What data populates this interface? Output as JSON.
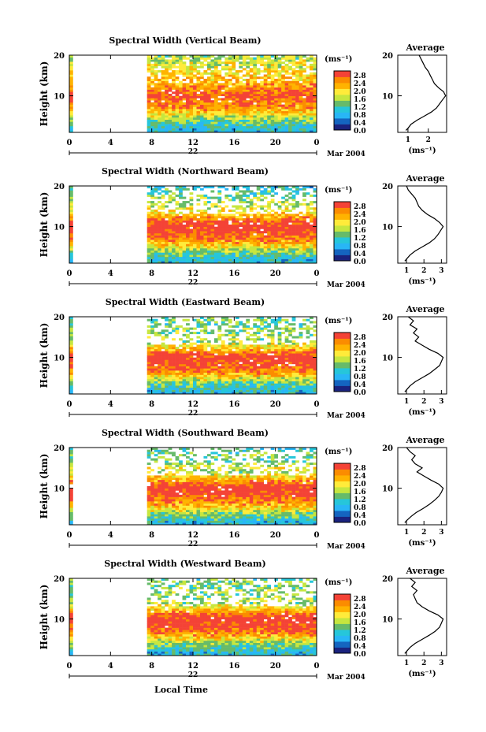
{
  "chart_data": [
    {
      "type": "heatmap",
      "title": "Spectral Width (Vertical Beam)",
      "ylabel": "Height (km)",
      "yticks": [
        "20",
        "10"
      ],
      "xticks": [
        "0",
        "4",
        "8",
        "12",
        "16",
        "20",
        "0"
      ],
      "date_day": "22",
      "date_month": "Mar 2004",
      "xlim": [
        0,
        24
      ],
      "ylim": [
        1,
        20
      ],
      "data_start_hour": 7.5,
      "colorbar": {
        "unit": "(ms⁻¹)",
        "ticks": [
          "2.8",
          "2.4",
          "2.0",
          "1.6",
          "1.2",
          "0.8",
          "0.4",
          "0.0"
        ],
        "range": [
          0,
          3
        ]
      },
      "avg_title": "Average",
      "avg_xticks": [
        "1",
        "2"
      ],
      "avg_xlabel": "(ms⁻¹)",
      "avg_xlim": [
        0.5,
        2.9
      ],
      "average_profile": {
        "height_km": [
          1.5,
          2,
          3,
          4,
          5,
          6,
          7,
          8,
          9,
          10,
          11,
          12,
          13,
          14,
          15,
          16,
          17,
          18,
          19,
          20
        ],
        "width": [
          0.9,
          1.0,
          1.15,
          1.45,
          1.8,
          2.15,
          2.4,
          2.55,
          2.7,
          2.85,
          2.75,
          2.5,
          2.3,
          2.2,
          2.1,
          2.0,
          1.85,
          1.75,
          1.65,
          1.55
        ]
      }
    },
    {
      "type": "heatmap",
      "title": "Spectral Width (Northward Beam)",
      "ylabel": "Height (km)",
      "yticks": [
        "20",
        "10"
      ],
      "xticks": [
        "0",
        "4",
        "8",
        "12",
        "16",
        "20",
        "0"
      ],
      "date_day": "22",
      "date_month": "Mar 2004",
      "xlim": [
        0,
        24
      ],
      "ylim": [
        1,
        20
      ],
      "data_start_hour": 7.5,
      "colorbar": {
        "unit": "(ms⁻¹)",
        "ticks": [
          "2.8",
          "2.4",
          "2.0",
          "1.6",
          "1.2",
          "0.8",
          "0.4",
          "0.0"
        ],
        "range": [
          0,
          3
        ]
      },
      "avg_title": "Average",
      "avg_xticks": [
        "1",
        "2",
        "3"
      ],
      "avg_xlabel": "(ms⁻¹)",
      "avg_xlim": [
        0.5,
        3.3
      ],
      "average_profile": {
        "height_km": [
          1.5,
          2,
          3,
          4,
          5,
          6,
          7,
          8,
          9,
          10,
          11,
          12,
          13,
          14,
          15,
          16,
          17,
          18,
          19,
          20
        ],
        "width": [
          0.9,
          1.0,
          1.2,
          1.5,
          1.9,
          2.3,
          2.6,
          2.8,
          2.95,
          3.1,
          2.9,
          2.6,
          2.2,
          1.9,
          1.7,
          1.6,
          1.5,
          1.3,
          1.1,
          1.0
        ]
      }
    },
    {
      "type": "heatmap",
      "title": "Spectral Width (Eastward Beam)",
      "ylabel": "Height (km)",
      "yticks": [
        "20",
        "10"
      ],
      "xticks": [
        "0",
        "4",
        "8",
        "12",
        "16",
        "20",
        "0"
      ],
      "date_day": "22",
      "date_month": "Mar 2004",
      "xlim": [
        0,
        24
      ],
      "ylim": [
        1,
        20
      ],
      "data_start_hour": 7.5,
      "colorbar": {
        "unit": "(ms⁻¹)",
        "ticks": [
          "2.8",
          "2.4",
          "2.0",
          "1.6",
          "1.2",
          "0.8",
          "0.4",
          "0.0"
        ],
        "range": [
          0,
          3
        ]
      },
      "avg_title": "Average",
      "avg_xticks": [
        "1",
        "2",
        "3"
      ],
      "avg_xlabel": "(ms⁻¹)",
      "avg_xlim": [
        0.5,
        3.3
      ],
      "average_profile": {
        "height_km": [
          1.5,
          2,
          3,
          4,
          5,
          6,
          7,
          8,
          9,
          10,
          11,
          12,
          13,
          14,
          15,
          16,
          17,
          18,
          19,
          20
        ],
        "width": [
          0.9,
          1.0,
          1.2,
          1.5,
          1.9,
          2.3,
          2.6,
          2.9,
          3.0,
          3.1,
          2.8,
          2.3,
          1.9,
          1.5,
          1.7,
          1.4,
          1.6,
          1.2,
          1.4,
          1.1
        ]
      }
    },
    {
      "type": "heatmap",
      "title": "Spectral Width (Southward Beam)",
      "ylabel": "Height (km)",
      "yticks": [
        "20",
        "10"
      ],
      "xticks": [
        "0",
        "4",
        "8",
        "12",
        "16",
        "20",
        "0"
      ],
      "date_day": "22",
      "date_month": "Mar 2004",
      "xlim": [
        0,
        24
      ],
      "ylim": [
        1,
        20
      ],
      "data_start_hour": 7.5,
      "colorbar": {
        "unit": "(ms⁻¹)",
        "ticks": [
          "2.8",
          "2.4",
          "2.0",
          "1.6",
          "1.2",
          "0.8",
          "0.4",
          "0.0"
        ],
        "range": [
          0,
          3
        ]
      },
      "avg_title": "Average",
      "avg_xticks": [
        "1",
        "2",
        "3"
      ],
      "avg_xlabel": "(ms⁻¹)",
      "avg_xlim": [
        0.5,
        3.3
      ],
      "average_profile": {
        "height_km": [
          1.5,
          2,
          3,
          4,
          5,
          6,
          7,
          8,
          9,
          10,
          11,
          12,
          13,
          14,
          15,
          16,
          17,
          18,
          19,
          20
        ],
        "width": [
          0.9,
          1.0,
          1.25,
          1.55,
          1.95,
          2.3,
          2.6,
          2.85,
          3.0,
          3.1,
          2.85,
          2.4,
          2.0,
          1.6,
          1.9,
          1.5,
          1.3,
          1.5,
          1.2,
          1.0
        ]
      }
    },
    {
      "type": "heatmap",
      "title": "Spectral Width (Westward Beam)",
      "ylabel": "Height (km)",
      "yticks": [
        "20",
        "10"
      ],
      "xticks": [
        "0",
        "4",
        "8",
        "12",
        "16",
        "20",
        "0"
      ],
      "date_day": "22",
      "date_month": "Mar 2004",
      "xlim": [
        0,
        24
      ],
      "ylim": [
        1,
        20
      ],
      "data_start_hour": 7.5,
      "colorbar": {
        "unit": "(ms⁻¹)",
        "ticks": [
          "2.8",
          "2.4",
          "2.0",
          "1.6",
          "1.2",
          "0.8",
          "0.4",
          "0.0"
        ],
        "range": [
          0,
          3
        ]
      },
      "avg_title": "Average",
      "avg_xticks": [
        "1",
        "2",
        "3"
      ],
      "avg_xlabel": "(ms⁻¹)",
      "avg_xlim": [
        0.5,
        3.3
      ],
      "average_profile": {
        "height_km": [
          1.5,
          2,
          3,
          4,
          5,
          6,
          7,
          8,
          9,
          10,
          11,
          12,
          13,
          14,
          15,
          16,
          17,
          18,
          19,
          20
        ],
        "width": [
          0.9,
          1.0,
          1.2,
          1.5,
          1.9,
          2.3,
          2.65,
          2.9,
          3.0,
          3.1,
          2.8,
          2.3,
          1.9,
          1.6,
          1.5,
          1.4,
          1.6,
          1.3,
          1.5,
          1.2
        ]
      }
    }
  ],
  "xlabel_bottom": "Local Time",
  "colormap": [
    "#1a237e",
    "#1565c0",
    "#29b6f6",
    "#26c6da",
    "#66bb6a",
    "#c6e63f",
    "#ffeb3b",
    "#ffb300",
    "#fb8c00",
    "#f44336"
  ]
}
